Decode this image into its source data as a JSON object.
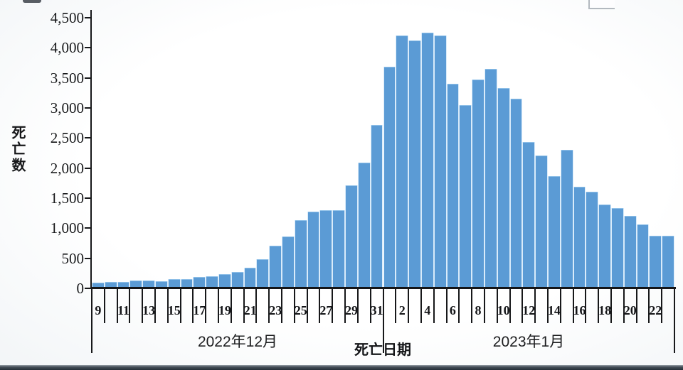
{
  "chart_data": {
    "type": "bar",
    "title": "",
    "ylabel": "死亡数",
    "xlabel": "死亡日期",
    "ylim": [
      0,
      4500
    ],
    "ytick_step": 500,
    "ytick_labels_top_to_bottom": [
      "4,500",
      "4,000",
      "3,500",
      "3,000",
      "2,500",
      "2,000",
      "1,500",
      "1,000",
      "500",
      "0"
    ],
    "bar_color": "#5b9bd5",
    "axis_color": "#17181a",
    "legend_position": "none",
    "grid": false,
    "groups": [
      {
        "label": "2022年12月",
        "days": [
          9,
          10,
          11,
          12,
          13,
          14,
          15,
          16,
          17,
          18,
          19,
          20,
          21,
          22,
          23,
          24,
          25,
          26,
          27,
          28,
          29,
          30,
          31
        ],
        "labeled_days": [
          9,
          11,
          13,
          15,
          17,
          19,
          21,
          23,
          25,
          27,
          29,
          31
        ],
        "values": [
          90,
          105,
          105,
          125,
          125,
          120,
          150,
          155,
          185,
          200,
          240,
          275,
          345,
          480,
          715,
          860,
          1130,
          1280,
          1300,
          1300,
          1710,
          2090,
          2720
        ]
      },
      {
        "label": "2023年1月",
        "days": [
          1,
          2,
          3,
          4,
          5,
          6,
          7,
          8,
          9,
          10,
          11,
          12,
          13,
          14,
          15,
          16,
          17,
          18,
          19,
          20,
          21,
          22,
          23
        ],
        "labeled_days": [
          2,
          4,
          6,
          8,
          10,
          12,
          14,
          16,
          18,
          20,
          22
        ],
        "values": [
          3690,
          4200,
          4120,
          4250,
          4210,
          3400,
          3050,
          3470,
          3650,
          3330,
          3150,
          2430,
          2210,
          1870,
          2300,
          1690,
          1610,
          1400,
          1330,
          1200,
          1060,
          870,
          870
        ]
      }
    ]
  }
}
